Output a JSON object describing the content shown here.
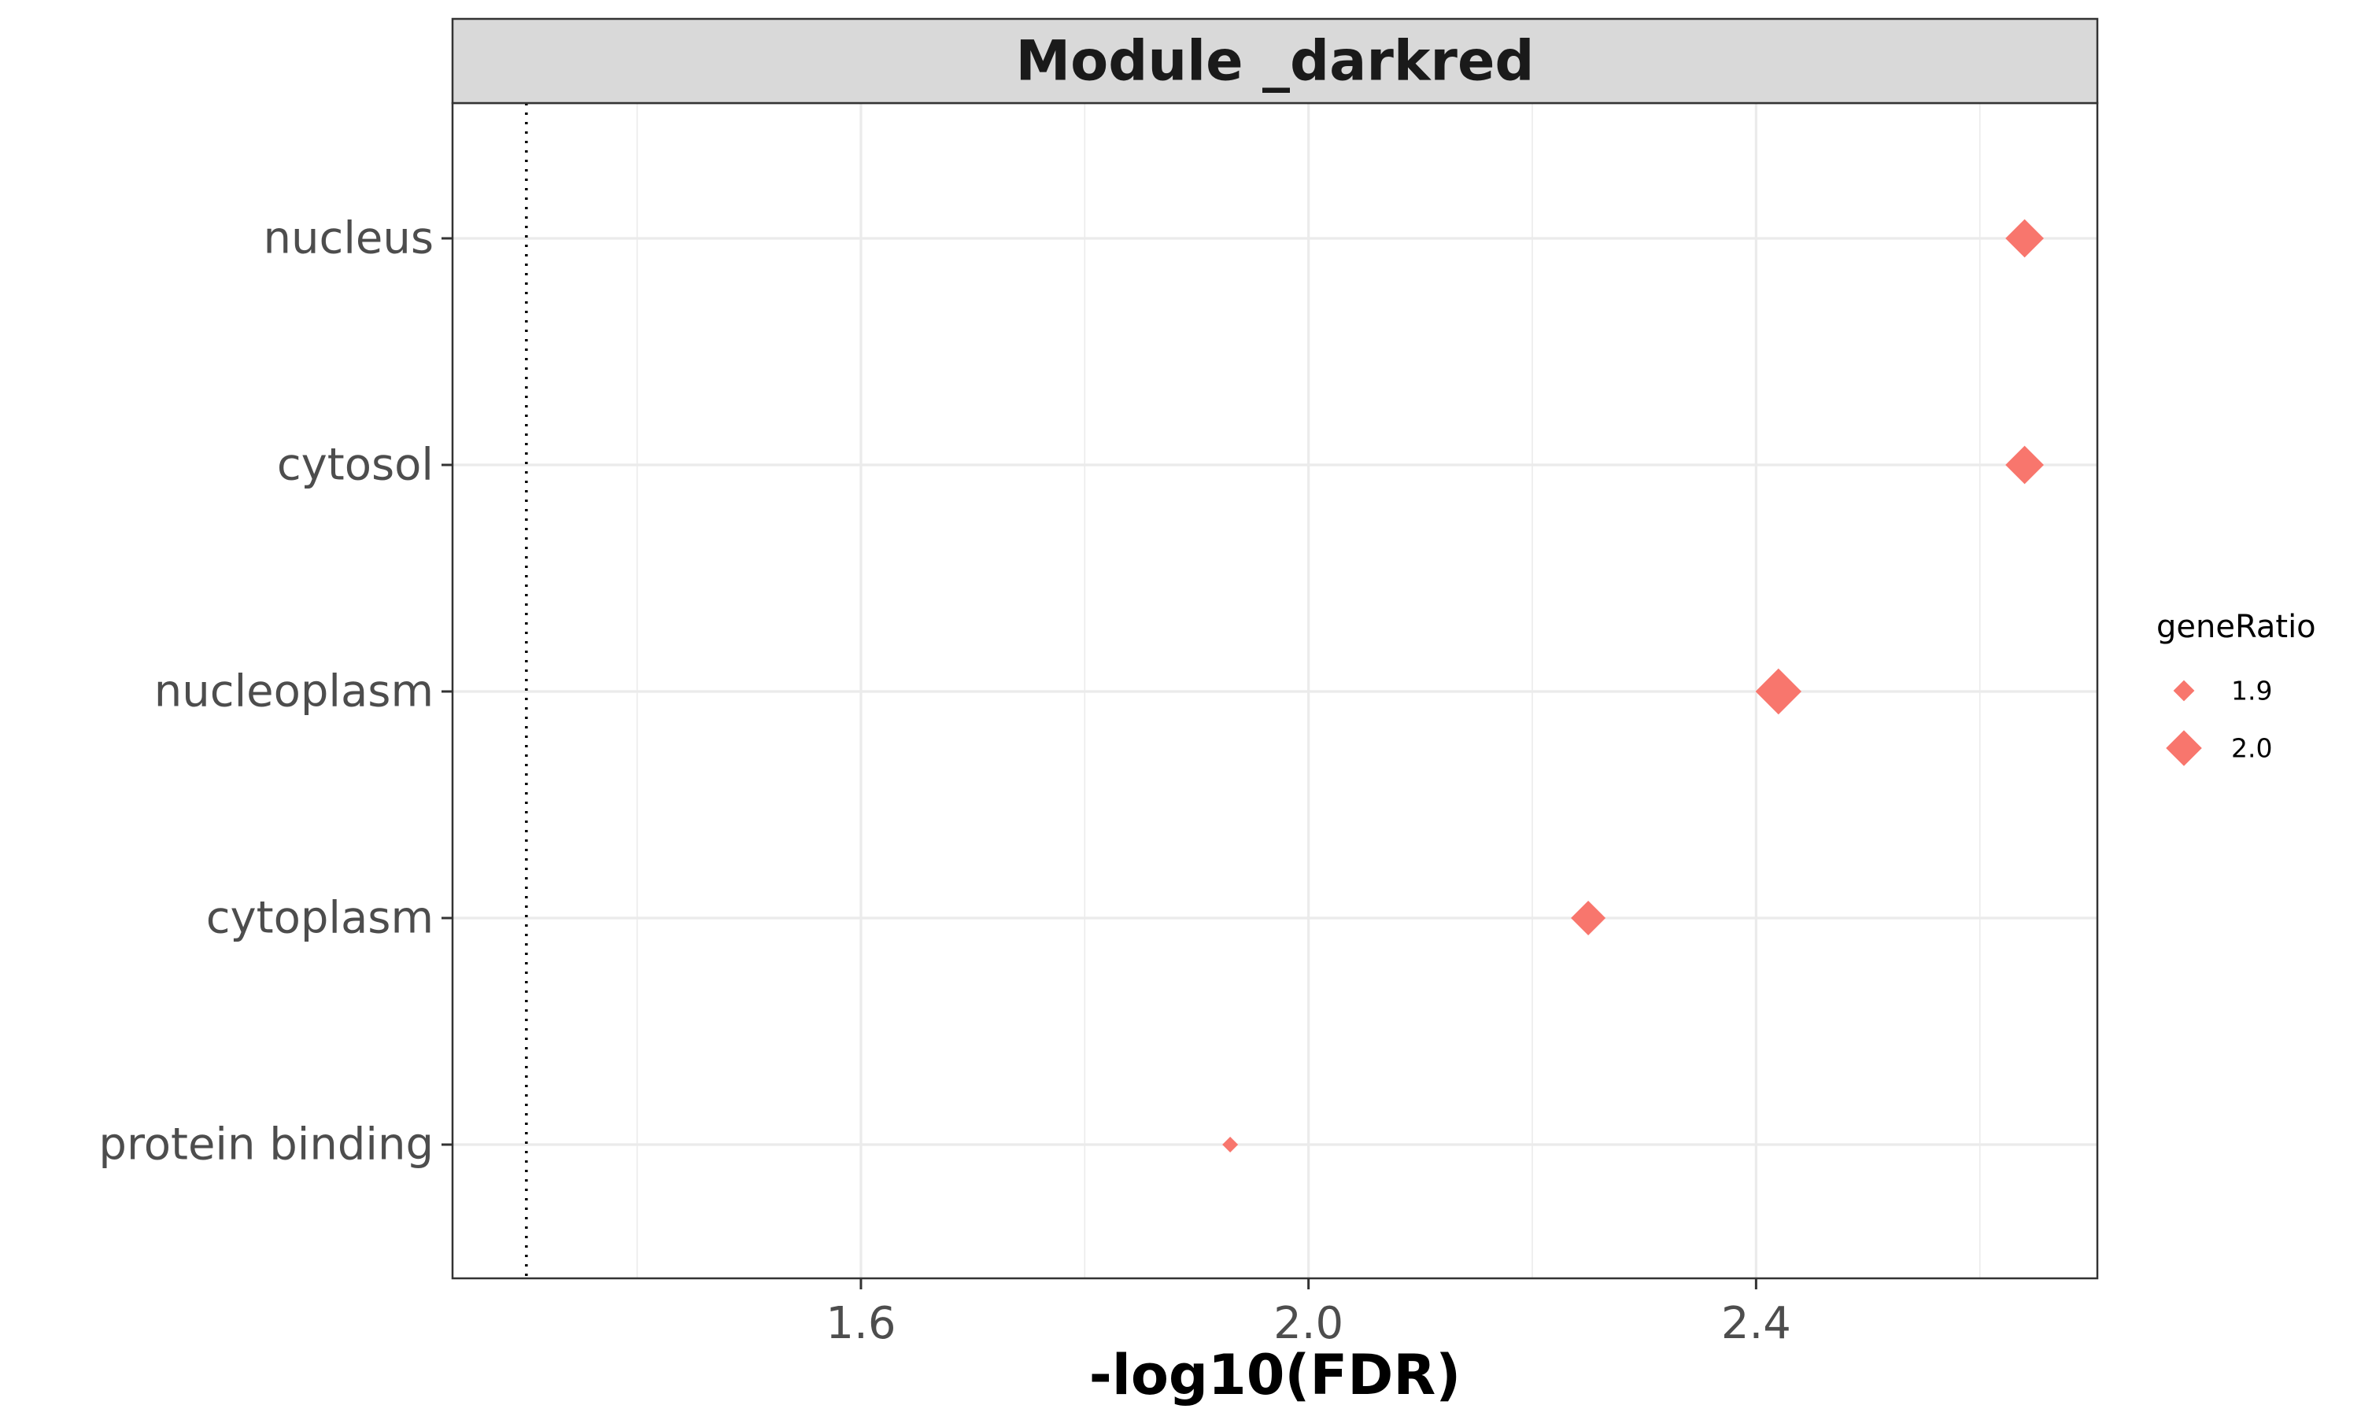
{
  "chart_data": {
    "type": "scatter",
    "title": "Module _darkred",
    "xlabel": "-log10(FDR)",
    "ylabel": "",
    "categories": [
      "nucleus",
      "cytosol",
      "nucleoplasm",
      "cytoplasm",
      "protein binding"
    ],
    "series": [
      {
        "values": [
          {
            "category": "nucleus",
            "x": 2.64,
            "geneRatio": 1.96
          },
          {
            "category": "cytosol",
            "x": 2.64,
            "geneRatio": 1.96
          },
          {
            "category": "nucleoplasm",
            "x": 2.42,
            "geneRatio": 2.0
          },
          {
            "category": "cytoplasm",
            "x": 2.25,
            "geneRatio": 1.94
          },
          {
            "category": "protein binding",
            "x": 1.93,
            "geneRatio": 1.84
          }
        ]
      }
    ],
    "xlim": [
      1.235,
      2.705
    ],
    "xticks": [
      "1.6",
      "2.0",
      "2.4"
    ],
    "reference_line_x": 1.301,
    "grid": true,
    "marker": "diamond",
    "marker_color": "#F8766D",
    "legend": {
      "title": "geneRatio",
      "position": "right",
      "entries": [
        {
          "label": "1.9",
          "value": 1.9
        },
        {
          "label": "2.0",
          "value": 2.0
        }
      ]
    },
    "strip_color": "#d9d9d9",
    "grid_color": "#ebebeb"
  }
}
